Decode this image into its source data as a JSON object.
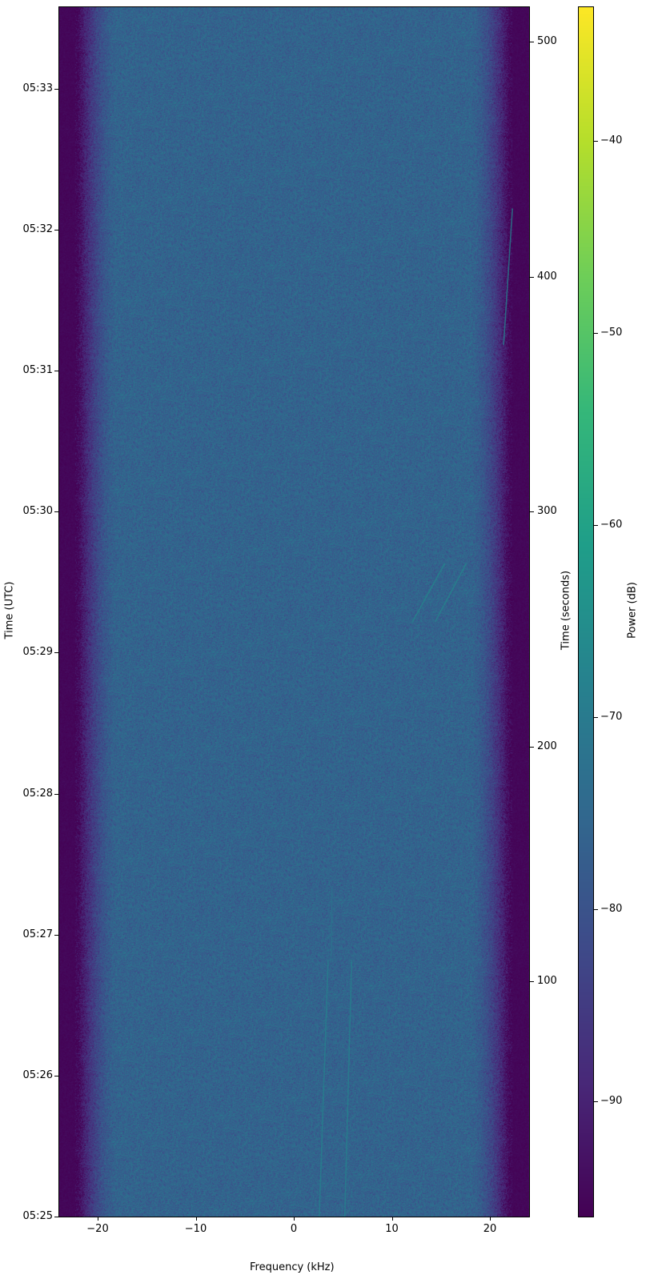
{
  "chart_data": {
    "type": "heatmap",
    "subtype": "spectrogram",
    "xlabel": "Frequency (kHz)",
    "ylabel_left": "Time (UTC)",
    "ylabel_right": "Time (seconds)",
    "colorbar_label": "Power (dB)",
    "colormap": "viridis",
    "xlim": [
      -24,
      24
    ],
    "ylim_seconds": [
      0,
      515
    ],
    "ylim_utc": [
      "05:25:00",
      "05:33:35"
    ],
    "clim": [
      -96,
      -33
    ],
    "x_ticks": [
      -20,
      -10,
      0,
      10,
      20
    ],
    "x_tick_labels": [
      "−20",
      "−10",
      "0",
      "10",
      "20"
    ],
    "y_left_ticks": [
      "05:25",
      "05:26",
      "05:27",
      "05:28",
      "05:29",
      "05:30",
      "05:31",
      "05:32",
      "05:33"
    ],
    "y_right_ticks": [
      100,
      200,
      300,
      400,
      500
    ],
    "colorbar_ticks": [
      -40,
      -50,
      -60,
      -70,
      -80,
      -90
    ],
    "colorbar_tick_labels": [
      "−40",
      "−50",
      "−60",
      "−70",
      "−80",
      "−90"
    ],
    "noise_floor_db": -76,
    "passband_edge_khz": 22,
    "out_of_band_db": -95,
    "signals": [
      {
        "points": [
          [
            2.6,
            0
          ],
          [
            3.5,
            109
          ]
        ],
        "power_db": -68
      },
      {
        "points": [
          [
            5.2,
            0
          ],
          [
            5.9,
            109
          ]
        ],
        "power_db": -68
      },
      {
        "points": [
          [
            3.8,
            109
          ],
          [
            3.9,
            140
          ]
        ],
        "power_db": -72
      },
      {
        "points": [
          [
            12.1,
            253
          ],
          [
            15.4,
            278
          ]
        ],
        "power_db": -67
      },
      {
        "points": [
          [
            14.4,
            253
          ],
          [
            17.6,
            278
          ]
        ],
        "power_db": -67
      },
      {
        "points": [
          [
            21.4,
            371
          ],
          [
            22.3,
            429
          ]
        ],
        "power_db": -68
      }
    ]
  }
}
